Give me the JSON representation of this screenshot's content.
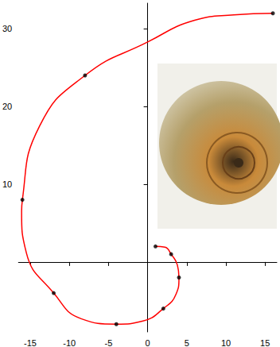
{
  "chart_data": {
    "type": "line",
    "xlim": [
      -16.5,
      16.5
    ],
    "ylim": [
      -9,
      33.3
    ],
    "xticks": [
      -15,
      -10,
      -5,
      0,
      5,
      10,
      15
    ],
    "yticks": [
      10,
      20,
      30
    ],
    "grid": false,
    "series": [
      {
        "type": "line",
        "color": "#ff0000",
        "line_style": "solid",
        "x": [
          1,
          2.2,
          3,
          3.8,
          4,
          3.6,
          2,
          -0.6,
          -4,
          -8.5,
          -12,
          -15.5,
          -16.1,
          -16,
          -13.8,
          -8,
          0,
          6,
          11,
          16
        ],
        "values": [
          2,
          1.9,
          1,
          -0.4,
          -2,
          -4.2,
          -6,
          -7.6,
          -8,
          -7.3,
          -4,
          1.2,
          6.5,
          8,
          17.5,
          24,
          28.3,
          31.1,
          31.8,
          32
        ]
      },
      {
        "type": "scatter",
        "color": "#000000",
        "marker": "circle",
        "x": [
          1,
          3,
          4,
          2,
          -4,
          -12,
          -16,
          -8,
          16
        ],
        "values": [
          2,
          1,
          -2,
          -6,
          -8,
          -4,
          8,
          24,
          32
        ]
      }
    ]
  }
}
